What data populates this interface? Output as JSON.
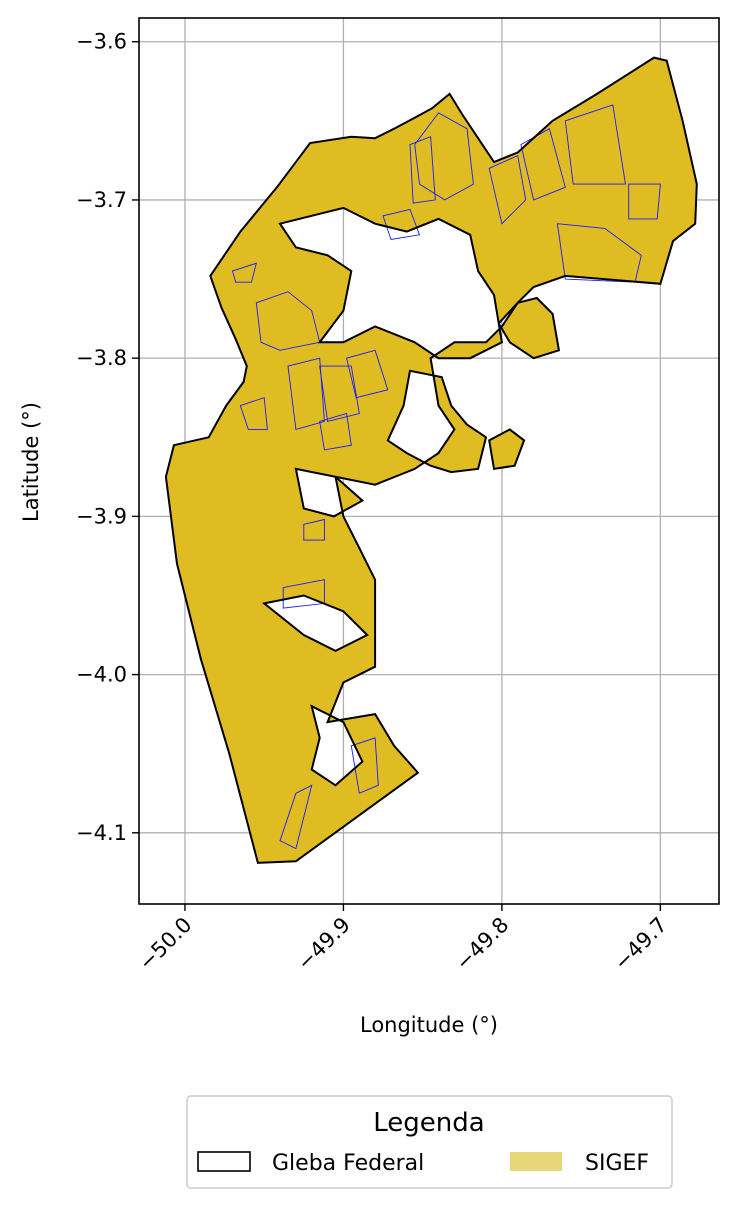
{
  "chart_data": {
    "type": "map",
    "xlabel": "Longitude (°)",
    "ylabel": "Latitude (°)",
    "xlim": [
      -50.029,
      -49.663
    ],
    "ylim": [
      -4.145,
      -3.585
    ],
    "x_ticks": [
      {
        "value": -50.0,
        "label": "−50.0"
      },
      {
        "value": -49.9,
        "label": "−49.9"
      },
      {
        "value": -49.8,
        "label": "−49.8"
      },
      {
        "value": -49.7,
        "label": "−49.7"
      }
    ],
    "y_ticks": [
      {
        "value": -3.6,
        "label": "−3.6"
      },
      {
        "value": -3.7,
        "label": "−3.7"
      },
      {
        "value": -3.8,
        "label": "−3.8"
      },
      {
        "value": -3.9,
        "label": "−3.9"
      },
      {
        "value": -4.0,
        "label": "−4.0"
      },
      {
        "value": -4.1,
        "label": "−4.1"
      }
    ],
    "x_tick_rotation_deg": 45,
    "grid": true,
    "legend": {
      "title": "Legenda",
      "placement": "bottom-center",
      "entries": [
        {
          "label": "Gleba Federal",
          "style": "outline",
          "color": "#000000"
        },
        {
          "label": "SIGEF",
          "style": "fill",
          "color": "#e9d677"
        }
      ]
    },
    "colors": {
      "gleba_outline": "#000000",
      "sigef_fill": "#dfbc22",
      "parcel_outline": "#1a1aff",
      "grid": "#b0b0b0"
    },
    "gleba_boundary": [
      [
        -49.954,
        -4.119
      ],
      [
        -49.972,
        -4.05
      ],
      [
        -49.99,
        -3.99
      ],
      [
        -50.005,
        -3.93
      ],
      [
        -50.012,
        -3.875
      ],
      [
        -50.007,
        -3.855
      ],
      [
        -49.985,
        -3.85
      ],
      [
        -49.974,
        -3.83
      ],
      [
        -49.963,
        -3.815
      ],
      [
        -49.961,
        -3.805
      ],
      [
        -49.968,
        -3.788
      ],
      [
        -49.977,
        -3.768
      ],
      [
        -49.984,
        -3.748
      ],
      [
        -49.965,
        -3.72
      ],
      [
        -49.942,
        -3.692
      ],
      [
        -49.921,
        -3.664
      ],
      [
        -49.895,
        -3.66
      ],
      [
        -49.88,
        -3.661
      ],
      [
        -49.868,
        -3.655
      ],
      [
        -49.855,
        -3.648
      ],
      [
        -49.844,
        -3.642
      ],
      [
        -49.833,
        -3.633
      ],
      [
        -49.825,
        -3.646
      ],
      [
        -49.805,
        -3.676
      ],
      [
        -49.79,
        -3.67
      ],
      [
        -49.768,
        -3.65
      ],
      [
        -49.74,
        -3.633
      ],
      [
        -49.704,
        -3.61
      ],
      [
        -49.696,
        -3.612
      ],
      [
        -49.686,
        -3.65
      ],
      [
        -49.677,
        -3.69
      ],
      [
        -49.678,
        -3.715
      ],
      [
        -49.692,
        -3.726
      ],
      [
        -49.7,
        -3.753
      ],
      [
        -49.76,
        -3.748
      ],
      [
        -49.78,
        -3.755
      ],
      [
        -49.79,
        -3.765
      ],
      [
        -49.8,
        -3.78
      ],
      [
        -49.81,
        -3.79
      ],
      [
        -49.83,
        -3.79
      ],
      [
        -49.845,
        -3.8
      ],
      [
        -49.84,
        -3.83
      ],
      [
        -49.83,
        -3.845
      ],
      [
        -49.84,
        -3.86
      ],
      [
        -49.855,
        -3.87
      ],
      [
        -49.88,
        -3.88
      ],
      [
        -49.905,
        -3.875
      ],
      [
        -49.9,
        -3.9
      ],
      [
        -49.89,
        -3.92
      ],
      [
        -49.88,
        -3.94
      ],
      [
        -49.88,
        -3.97
      ],
      [
        -49.88,
        -3.995
      ],
      [
        -49.9,
        -4.005
      ],
      [
        -49.91,
        -4.03
      ],
      [
        -49.88,
        -4.025
      ],
      [
        -49.868,
        -4.045
      ],
      [
        -49.853,
        -4.062
      ],
      [
        -49.93,
        -4.118
      ]
    ],
    "holes": [
      {
        "name": "upper-river-cutout",
        "points": [
          [
            -49.94,
            -3.715
          ],
          [
            -49.9,
            -3.705
          ],
          [
            -49.88,
            -3.715
          ],
          [
            -49.86,
            -3.72
          ],
          [
            -49.84,
            -3.712
          ],
          [
            -49.82,
            -3.722
          ],
          [
            -49.815,
            -3.745
          ],
          [
            -49.805,
            -3.76
          ],
          [
            -49.8,
            -3.79
          ],
          [
            -49.82,
            -3.8
          ],
          [
            -49.84,
            -3.8
          ],
          [
            -49.855,
            -3.79
          ],
          [
            -49.88,
            -3.78
          ],
          [
            -49.9,
            -3.79
          ],
          [
            -49.915,
            -3.79
          ],
          [
            -49.9,
            -3.77
          ],
          [
            -49.895,
            -3.745
          ],
          [
            -49.91,
            -3.735
          ],
          [
            -49.93,
            -3.73
          ]
        ]
      },
      {
        "name": "right-river-cutout",
        "points": [
          [
            -49.79,
            -3.765
          ],
          [
            -49.778,
            -3.762
          ],
          [
            -49.768,
            -3.772
          ],
          [
            -49.764,
            -3.795
          ],
          [
            -49.78,
            -3.8
          ],
          [
            -49.795,
            -3.79
          ],
          [
            -49.802,
            -3.778
          ]
        ]
      },
      {
        "name": "middle-river-cutout",
        "points": [
          [
            -49.858,
            -3.808
          ],
          [
            -49.838,
            -3.812
          ],
          [
            -49.832,
            -3.83
          ],
          [
            -49.822,
            -3.842
          ],
          [
            -49.81,
            -3.85
          ],
          [
            -49.815,
            -3.87
          ],
          [
            -49.832,
            -3.872
          ],
          [
            -49.845,
            -3.868
          ],
          [
            -49.86,
            -3.86
          ],
          [
            -49.872,
            -3.852
          ],
          [
            -49.862,
            -3.83
          ]
        ]
      },
      {
        "name": "east-lobe-cutout",
        "points": [
          [
            -49.808,
            -3.852
          ],
          [
            -49.795,
            -3.845
          ],
          [
            -49.786,
            -3.852
          ],
          [
            -49.792,
            -3.868
          ],
          [
            -49.805,
            -3.87
          ]
        ]
      },
      {
        "name": "lower-inlet-1",
        "points": [
          [
            -49.93,
            -3.87
          ],
          [
            -49.905,
            -3.875
          ],
          [
            -49.888,
            -3.89
          ],
          [
            -49.906,
            -3.9
          ],
          [
            -49.925,
            -3.895
          ]
        ]
      },
      {
        "name": "lower-inlet-2",
        "points": [
          [
            -49.95,
            -3.955
          ],
          [
            -49.925,
            -3.95
          ],
          [
            -49.9,
            -3.96
          ],
          [
            -49.885,
            -3.975
          ],
          [
            -49.905,
            -3.985
          ],
          [
            -49.925,
            -3.975
          ]
        ]
      },
      {
        "name": "lower-inlet-3",
        "points": [
          [
            -49.92,
            -4.02
          ],
          [
            -49.9,
            -4.03
          ],
          [
            -49.888,
            -4.055
          ],
          [
            -49.905,
            -4.07
          ],
          [
            -49.92,
            -4.06
          ],
          [
            -49.915,
            -4.04
          ]
        ]
      }
    ],
    "parcels": [
      [
        [
          -49.84,
          -3.645
        ],
        [
          -49.822,
          -3.655
        ],
        [
          -49.818,
          -3.69
        ],
        [
          -49.836,
          -3.7
        ],
        [
          -49.852,
          -3.69
        ],
        [
          -49.855,
          -3.665
        ]
      ],
      [
        [
          -49.858,
          -3.665
        ],
        [
          -49.845,
          -3.66
        ],
        [
          -49.842,
          -3.7
        ],
        [
          -49.856,
          -3.702
        ]
      ],
      [
        [
          -49.808,
          -3.68
        ],
        [
          -49.79,
          -3.672
        ],
        [
          -49.785,
          -3.7
        ],
        [
          -49.8,
          -3.715
        ]
      ],
      [
        [
          -49.788,
          -3.665
        ],
        [
          -49.77,
          -3.655
        ],
        [
          -49.76,
          -3.692
        ],
        [
          -49.78,
          -3.7
        ]
      ],
      [
        [
          -49.76,
          -3.65
        ],
        [
          -49.73,
          -3.64
        ],
        [
          -49.722,
          -3.69
        ],
        [
          -49.755,
          -3.69
        ]
      ],
      [
        [
          -49.72,
          -3.69
        ],
        [
          -49.7,
          -3.69
        ],
        [
          -49.702,
          -3.712
        ],
        [
          -49.72,
          -3.712
        ]
      ],
      [
        [
          -49.765,
          -3.715
        ],
        [
          -49.735,
          -3.718
        ],
        [
          -49.712,
          -3.735
        ],
        [
          -49.716,
          -3.752
        ],
        [
          -49.76,
          -3.75
        ]
      ],
      [
        [
          -49.875,
          -3.71
        ],
        [
          -49.858,
          -3.706
        ],
        [
          -49.852,
          -3.722
        ],
        [
          -49.87,
          -3.725
        ]
      ],
      [
        [
          -49.97,
          -3.745
        ],
        [
          -49.955,
          -3.74
        ],
        [
          -49.958,
          -3.752
        ],
        [
          -49.968,
          -3.752
        ]
      ],
      [
        [
          -49.955,
          -3.765
        ],
        [
          -49.935,
          -3.758
        ],
        [
          -49.92,
          -3.77
        ],
        [
          -49.915,
          -3.79
        ],
        [
          -49.94,
          -3.795
        ],
        [
          -49.952,
          -3.79
        ]
      ],
      [
        [
          -49.935,
          -3.805
        ],
        [
          -49.915,
          -3.8
        ],
        [
          -49.912,
          -3.84
        ],
        [
          -49.93,
          -3.845
        ]
      ],
      [
        [
          -49.915,
          -3.805
        ],
        [
          -49.895,
          -3.805
        ],
        [
          -49.89,
          -3.835
        ],
        [
          -49.91,
          -3.84
        ]
      ],
      [
        [
          -49.898,
          -3.8
        ],
        [
          -49.88,
          -3.795
        ],
        [
          -49.872,
          -3.82
        ],
        [
          -49.892,
          -3.825
        ]
      ],
      [
        [
          -49.915,
          -3.84
        ],
        [
          -49.898,
          -3.835
        ],
        [
          -49.895,
          -3.855
        ],
        [
          -49.912,
          -3.858
        ]
      ],
      [
        [
          -49.965,
          -3.83
        ],
        [
          -49.95,
          -3.825
        ],
        [
          -49.948,
          -3.845
        ],
        [
          -49.96,
          -3.845
        ]
      ],
      [
        [
          -49.938,
          -3.945
        ],
        [
          -49.912,
          -3.94
        ],
        [
          -49.912,
          -3.955
        ],
        [
          -49.938,
          -3.958
        ]
      ],
      [
        [
          -49.925,
          -3.905
        ],
        [
          -49.912,
          -3.902
        ],
        [
          -49.912,
          -3.915
        ],
        [
          -49.925,
          -3.915
        ]
      ],
      [
        [
          -49.93,
          -4.075
        ],
        [
          -49.92,
          -4.07
        ],
        [
          -49.93,
          -4.11
        ],
        [
          -49.94,
          -4.105
        ]
      ],
      [
        [
          -49.895,
          -4.045
        ],
        [
          -49.88,
          -4.04
        ],
        [
          -49.878,
          -4.07
        ],
        [
          -49.89,
          -4.075
        ]
      ]
    ]
  }
}
